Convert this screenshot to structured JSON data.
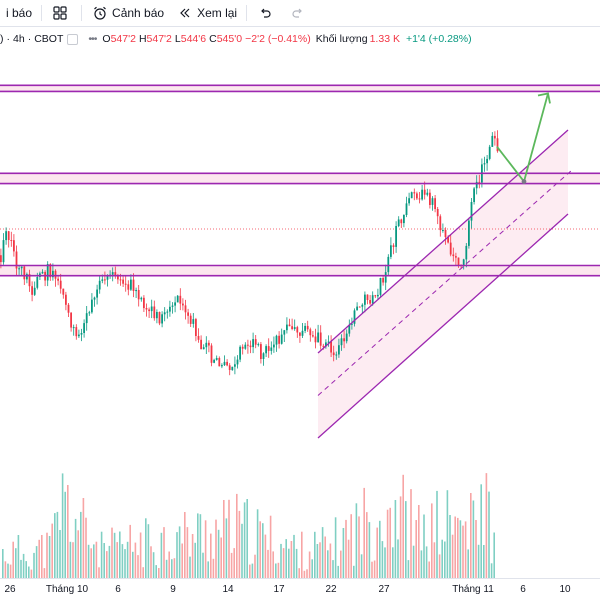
{
  "toolbar": {
    "partial_label": "i báo",
    "alert_label": "Cảnh báo",
    "replay_label": "Xem lại"
  },
  "legend": {
    "symbol_prefix": ")",
    "interval": "4h",
    "exchange": "CBOT",
    "o_label": "O",
    "o_value": "547'2",
    "h_label": "H",
    "h_value": "547'2",
    "l_label": "L",
    "l_value": "544'6",
    "c_label": "C",
    "c_value": "545'0",
    "change": "−2'2 (−0.41%)",
    "volume_label": "Khối lượng",
    "volume_value": "1.33 K",
    "volume_change": "+1'4 (+0.28%)"
  },
  "colors": {
    "up": "#089981",
    "down": "#f23645",
    "vol_up": "#7fcfc3",
    "vol_down": "#f7a5a5",
    "level_lines": "#9c27b0",
    "channel_fill": "#fce4ec",
    "projection": "#5cb85c"
  },
  "chart_data": {
    "type": "candlestick",
    "x_tick_labels": [
      "26",
      "Tháng 10",
      "6",
      "9",
      "14",
      "17",
      "22",
      "27",
      "Tháng 11",
      "6",
      "10"
    ],
    "y_range": [
      535,
      556
    ],
    "horizontal_levels": [
      553.3,
      553.0,
      549.0,
      548.5,
      544.5,
      544.0
    ],
    "close_path": [
      [
        0,
        545.0
      ],
      [
        6,
        546.0
      ],
      [
        12,
        545.3
      ],
      [
        18,
        544.2
      ],
      [
        24,
        544.0
      ],
      [
        32,
        543.3
      ],
      [
        40,
        543.9
      ],
      [
        48,
        544.3
      ],
      [
        58,
        543.6
      ],
      [
        64,
        542.6
      ],
      [
        70,
        541.8
      ],
      [
        78,
        541.1
      ],
      [
        86,
        542.2
      ],
      [
        94,
        543.2
      ],
      [
        102,
        543.6
      ],
      [
        110,
        543.9
      ],
      [
        118,
        544.1
      ],
      [
        126,
        543.7
      ],
      [
        134,
        543.3
      ],
      [
        142,
        542.7
      ],
      [
        150,
        542.2
      ],
      [
        158,
        541.8
      ],
      [
        166,
        542.4
      ],
      [
        174,
        542.9
      ],
      [
        182,
        542.6
      ],
      [
        190,
        541.9
      ],
      [
        198,
        540.8
      ],
      [
        206,
        540.4
      ],
      [
        214,
        539.8
      ],
      [
        222,
        539.5
      ],
      [
        230,
        539.4
      ],
      [
        238,
        540.2
      ],
      [
        246,
        540.9
      ],
      [
        254,
        540.6
      ],
      [
        262,
        540.1
      ],
      [
        270,
        540.6
      ],
      [
        278,
        541.0
      ],
      [
        286,
        541.3
      ],
      [
        294,
        541.6
      ],
      [
        302,
        541.3
      ],
      [
        310,
        541.0
      ],
      [
        318,
        540.9
      ],
      [
        326,
        540.5
      ],
      [
        334,
        540.2
      ],
      [
        342,
        540.8
      ],
      [
        350,
        541.7
      ],
      [
        358,
        542.4
      ],
      [
        366,
        543.0
      ],
      [
        374,
        542.8
      ],
      [
        382,
        543.9
      ],
      [
        390,
        545.3
      ],
      [
        398,
        546.5
      ],
      [
        406,
        547.4
      ],
      [
        414,
        548.0
      ],
      [
        422,
        548.1
      ],
      [
        430,
        547.6
      ],
      [
        438,
        546.8
      ],
      [
        446,
        545.5
      ],
      [
        452,
        545.2
      ],
      [
        458,
        544.6
      ],
      [
        464,
        544.9
      ],
      [
        470,
        547.2
      ],
      [
        476,
        548.6
      ],
      [
        482,
        549.3
      ],
      [
        488,
        550.2
      ],
      [
        493,
        550.8
      ],
      [
        497,
        550.3
      ]
    ],
    "volume_path": [
      [
        0,
        0.26
      ],
      [
        50,
        0.33
      ],
      [
        61,
        0.84
      ],
      [
        100,
        0.3
      ],
      [
        150,
        0.4
      ],
      [
        237,
        0.55
      ],
      [
        300,
        0.3
      ],
      [
        330,
        0.35
      ],
      [
        394,
        0.84
      ],
      [
        420,
        0.45
      ],
      [
        440,
        0.6
      ],
      [
        478,
        0.55
      ],
      [
        483,
        0.88
      ],
      [
        488,
        0.71
      ],
      [
        495,
        0.2
      ]
    ],
    "projection": {
      "from": [
        497,
        550.3
      ],
      "mid": [
        524,
        548.6
      ],
      "to": [
        548,
        552.9
      ]
    }
  }
}
